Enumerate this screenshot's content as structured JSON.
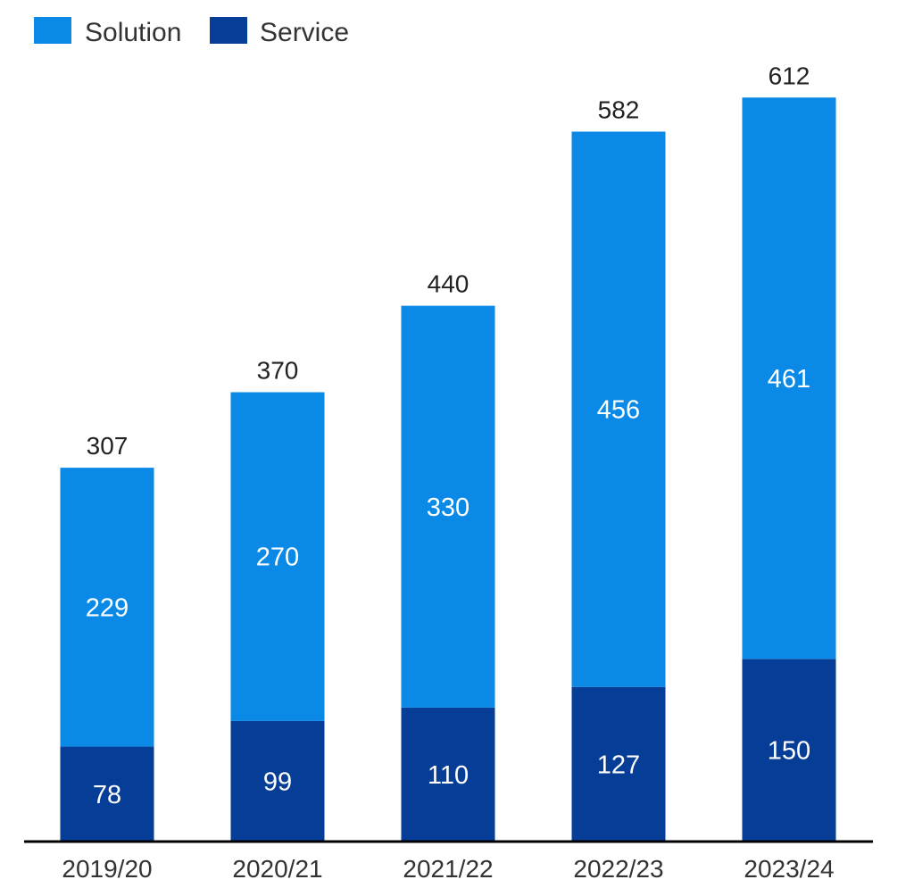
{
  "chart_data": {
    "type": "bar",
    "stacked": true,
    "categories": [
      "2019/20",
      "2020/21",
      "2021/22",
      "2022/23",
      "2023/24"
    ],
    "series": [
      {
        "name": "Service",
        "values": [
          78,
          99,
          110,
          127,
          150
        ],
        "color": "#063d96"
      },
      {
        "name": "Solution",
        "values": [
          229,
          270,
          330,
          456,
          461
        ],
        "color": "#0a8ae6"
      }
    ],
    "totals": [
      "307",
      "370",
      "440",
      "582",
      "612"
    ],
    "legend": {
      "position": "top-left",
      "order": [
        "Solution",
        "Service"
      ]
    },
    "ylim": [
      0,
      660
    ],
    "grid": false,
    "title": "",
    "xlabel": "",
    "ylabel": ""
  }
}
